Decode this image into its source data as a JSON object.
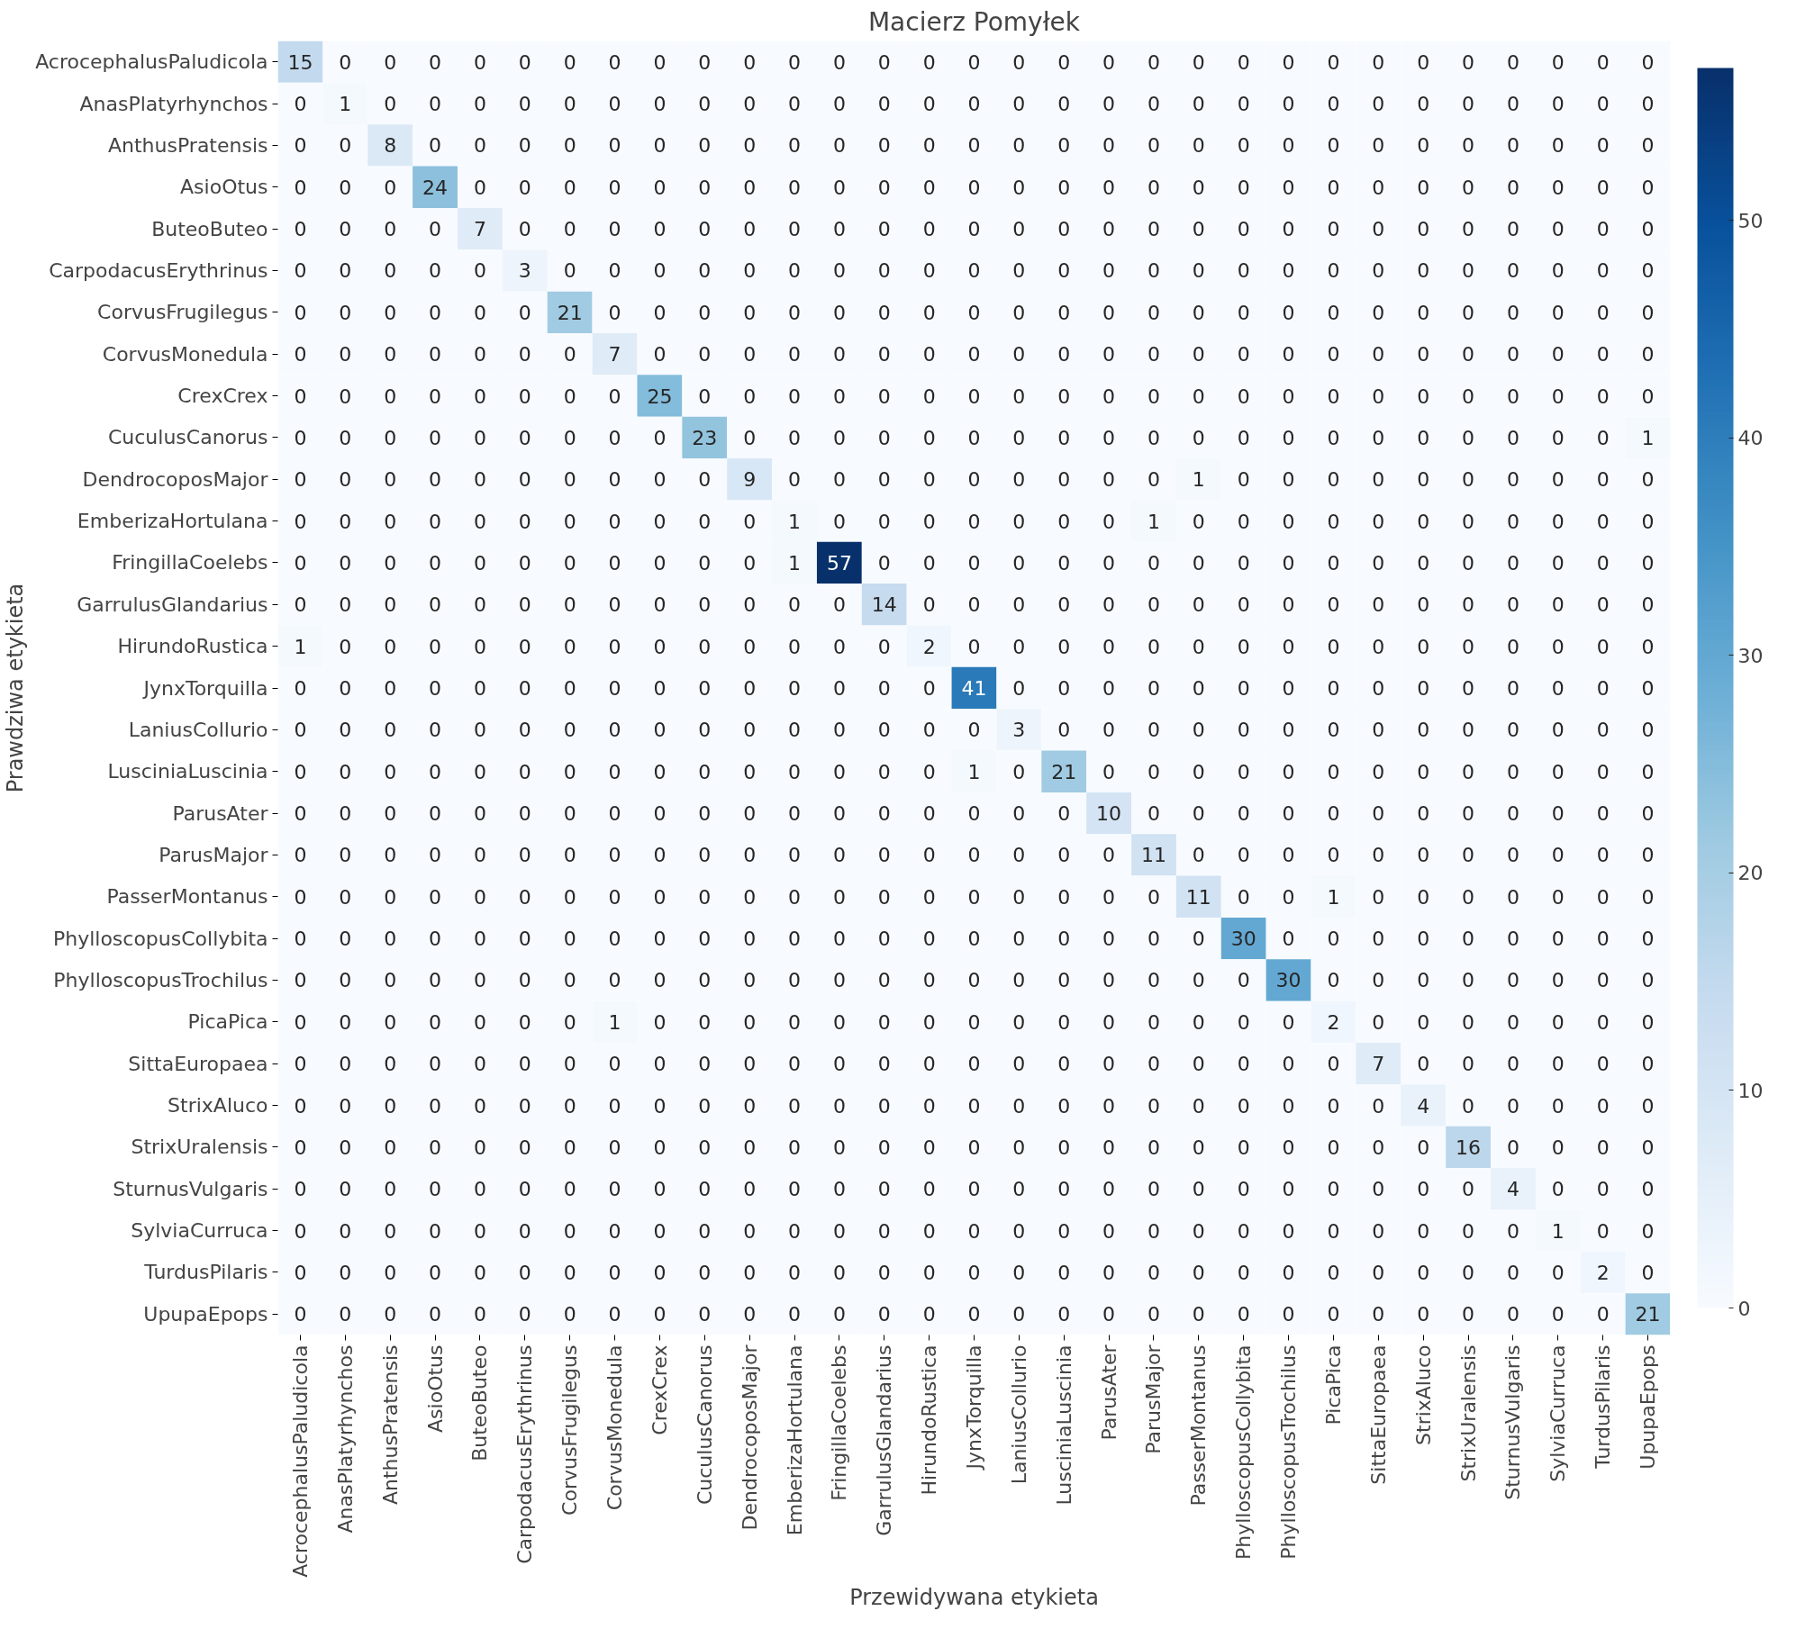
{
  "chart_data": {
    "type": "heatmap",
    "title": "Macierz Pomyłek",
    "xlabel": "Przewidywana etykieta",
    "ylabel": "Prawdziwa etykieta",
    "categories": [
      "AcrocephalusPaludicola",
      "AnasPlatyrhynchos",
      "AnthusPratensis",
      "AsioOtus",
      "ButeoButeo",
      "CarpodacusErythrinus",
      "CorvusFrugilegus",
      "CorvusMonedula",
      "CrexCrex",
      "CuculusCanorus",
      "DendrocoposMajor",
      "EmberizaHortulana",
      "FringillaCoelebs",
      "GarrulusGlandarius",
      "HirundoRustica",
      "JynxTorquilla",
      "LaniusCollurio",
      "LusciniaLuscinia",
      "ParusAter",
      "ParusMajor",
      "PasserMontanus",
      "PhylloscopusCollybita",
      "PhylloscopusTrochilus",
      "PicaPica",
      "SittaEuropaea",
      "StrixAluco",
      "StrixUralensis",
      "SturnusVulgaris",
      "SylviaCurruca",
      "TurdusPilaris",
      "UpupaEpops"
    ],
    "y_categories": [
      "AcrocephalusPaludicola",
      "AnasPlatyrhynchos",
      "AnthusPratensis",
      "AsioOtus",
      "ButeoButeo",
      "CarpodacusErythrinus",
      "CorvusFrugilegus",
      "CorvusMonedula",
      "CrexCrex",
      "CuculusCanorus",
      "DendrocoposMajor",
      "EmberizaHortulana",
      "FringillaCoelebs",
      "GarrulusGlandarius",
      "HirundoRustica",
      "JynxTorquilla",
      "LaniusCollurio",
      "LusciniaLuscinia",
      "ParusAter",
      "ParusMajor",
      "PasserMontanus",
      "PhylloscopusCollybita",
      "PhylloscopusTrochilus",
      "PicaPica",
      "SittaEuropaea",
      "StrixAluco",
      "StrixUralensis",
      "SturnusVulgaris",
      "SylviaCurruca",
      "TurdusPilaris",
      "UpupaEpops"
    ],
    "cells": [
      [
        15,
        0,
        0,
        0,
        0,
        0,
        0,
        0,
        0,
        0,
        0,
        0,
        0,
        0,
        0,
        0,
        0,
        0,
        0,
        0,
        0,
        0,
        0,
        0,
        0,
        0,
        0,
        0,
        0,
        0,
        0
      ],
      [
        0,
        1,
        0,
        0,
        0,
        0,
        0,
        0,
        0,
        0,
        0,
        0,
        0,
        0,
        0,
        0,
        0,
        0,
        0,
        0,
        0,
        0,
        0,
        0,
        0,
        0,
        0,
        0,
        0,
        0,
        0
      ],
      [
        0,
        0,
        8,
        0,
        0,
        0,
        0,
        0,
        0,
        0,
        0,
        0,
        0,
        0,
        0,
        0,
        0,
        0,
        0,
        0,
        0,
        0,
        0,
        0,
        0,
        0,
        0,
        0,
        0,
        0,
        0
      ],
      [
        0,
        0,
        0,
        24,
        0,
        0,
        0,
        0,
        0,
        0,
        0,
        0,
        0,
        0,
        0,
        0,
        0,
        0,
        0,
        0,
        0,
        0,
        0,
        0,
        0,
        0,
        0,
        0,
        0,
        0,
        0
      ],
      [
        0,
        0,
        0,
        0,
        7,
        0,
        0,
        0,
        0,
        0,
        0,
        0,
        0,
        0,
        0,
        0,
        0,
        0,
        0,
        0,
        0,
        0,
        0,
        0,
        0,
        0,
        0,
        0,
        0,
        0,
        0
      ],
      [
        0,
        0,
        0,
        0,
        0,
        3,
        0,
        0,
        0,
        0,
        0,
        0,
        0,
        0,
        0,
        0,
        0,
        0,
        0,
        0,
        0,
        0,
        0,
        0,
        0,
        0,
        0,
        0,
        0,
        0,
        0
      ],
      [
        0,
        0,
        0,
        0,
        0,
        0,
        21,
        0,
        0,
        0,
        0,
        0,
        0,
        0,
        0,
        0,
        0,
        0,
        0,
        0,
        0,
        0,
        0,
        0,
        0,
        0,
        0,
        0,
        0,
        0,
        0
      ],
      [
        0,
        0,
        0,
        0,
        0,
        0,
        0,
        7,
        0,
        0,
        0,
        0,
        0,
        0,
        0,
        0,
        0,
        0,
        0,
        0,
        0,
        0,
        0,
        0,
        0,
        0,
        0,
        0,
        0,
        0,
        0
      ],
      [
        0,
        0,
        0,
        0,
        0,
        0,
        0,
        0,
        25,
        0,
        0,
        0,
        0,
        0,
        0,
        0,
        0,
        0,
        0,
        0,
        0,
        0,
        0,
        0,
        0,
        0,
        0,
        0,
        0,
        0,
        0
      ],
      [
        0,
        0,
        0,
        0,
        0,
        0,
        0,
        0,
        0,
        23,
        0,
        0,
        0,
        0,
        0,
        0,
        0,
        0,
        0,
        0,
        0,
        0,
        0,
        0,
        0,
        0,
        0,
        0,
        0,
        0,
        1
      ],
      [
        0,
        0,
        0,
        0,
        0,
        0,
        0,
        0,
        0,
        0,
        9,
        0,
        0,
        0,
        0,
        0,
        0,
        0,
        0,
        0,
        1,
        0,
        0,
        0,
        0,
        0,
        0,
        0,
        0,
        0,
        0
      ],
      [
        0,
        0,
        0,
        0,
        0,
        0,
        0,
        0,
        0,
        0,
        0,
        1,
        0,
        0,
        0,
        0,
        0,
        0,
        0,
        1,
        0,
        0,
        0,
        0,
        0,
        0,
        0,
        0,
        0,
        0,
        0
      ],
      [
        0,
        0,
        0,
        0,
        0,
        0,
        0,
        0,
        0,
        0,
        0,
        1,
        57,
        0,
        0,
        0,
        0,
        0,
        0,
        0,
        0,
        0,
        0,
        0,
        0,
        0,
        0,
        0,
        0,
        0,
        0
      ],
      [
        0,
        0,
        0,
        0,
        0,
        0,
        0,
        0,
        0,
        0,
        0,
        0,
        0,
        14,
        0,
        0,
        0,
        0,
        0,
        0,
        0,
        0,
        0,
        0,
        0,
        0,
        0,
        0,
        0,
        0,
        0
      ],
      [
        1,
        0,
        0,
        0,
        0,
        0,
        0,
        0,
        0,
        0,
        0,
        0,
        0,
        0,
        2,
        0,
        0,
        0,
        0,
        0,
        0,
        0,
        0,
        0,
        0,
        0,
        0,
        0,
        0,
        0,
        0
      ],
      [
        0,
        0,
        0,
        0,
        0,
        0,
        0,
        0,
        0,
        0,
        0,
        0,
        0,
        0,
        0,
        41,
        0,
        0,
        0,
        0,
        0,
        0,
        0,
        0,
        0,
        0,
        0,
        0,
        0,
        0,
        0
      ],
      [
        0,
        0,
        0,
        0,
        0,
        0,
        0,
        0,
        0,
        0,
        0,
        0,
        0,
        0,
        0,
        0,
        3,
        0,
        0,
        0,
        0,
        0,
        0,
        0,
        0,
        0,
        0,
        0,
        0,
        0,
        0
      ],
      [
        0,
        0,
        0,
        0,
        0,
        0,
        0,
        0,
        0,
        0,
        0,
        0,
        0,
        0,
        0,
        1,
        0,
        21,
        0,
        0,
        0,
        0,
        0,
        0,
        0,
        0,
        0,
        0,
        0,
        0,
        0
      ],
      [
        0,
        0,
        0,
        0,
        0,
        0,
        0,
        0,
        0,
        0,
        0,
        0,
        0,
        0,
        0,
        0,
        0,
        0,
        10,
        0,
        0,
        0,
        0,
        0,
        0,
        0,
        0,
        0,
        0,
        0,
        0
      ],
      [
        0,
        0,
        0,
        0,
        0,
        0,
        0,
        0,
        0,
        0,
        0,
        0,
        0,
        0,
        0,
        0,
        0,
        0,
        0,
        11,
        0,
        0,
        0,
        0,
        0,
        0,
        0,
        0,
        0,
        0,
        0
      ],
      [
        0,
        0,
        0,
        0,
        0,
        0,
        0,
        0,
        0,
        0,
        0,
        0,
        0,
        0,
        0,
        0,
        0,
        0,
        0,
        0,
        11,
        0,
        0,
        1,
        0,
        0,
        0,
        0,
        0,
        0,
        0
      ],
      [
        0,
        0,
        0,
        0,
        0,
        0,
        0,
        0,
        0,
        0,
        0,
        0,
        0,
        0,
        0,
        0,
        0,
        0,
        0,
        0,
        0,
        30,
        0,
        0,
        0,
        0,
        0,
        0,
        0,
        0,
        0
      ],
      [
        0,
        0,
        0,
        0,
        0,
        0,
        0,
        0,
        0,
        0,
        0,
        0,
        0,
        0,
        0,
        0,
        0,
        0,
        0,
        0,
        0,
        0,
        30,
        0,
        0,
        0,
        0,
        0,
        0,
        0,
        0
      ],
      [
        0,
        0,
        0,
        0,
        0,
        0,
        0,
        1,
        0,
        0,
        0,
        0,
        0,
        0,
        0,
        0,
        0,
        0,
        0,
        0,
        0,
        0,
        0,
        2,
        0,
        0,
        0,
        0,
        0,
        0,
        0
      ],
      [
        0,
        0,
        0,
        0,
        0,
        0,
        0,
        0,
        0,
        0,
        0,
        0,
        0,
        0,
        0,
        0,
        0,
        0,
        0,
        0,
        0,
        0,
        0,
        0,
        7,
        0,
        0,
        0,
        0,
        0,
        0
      ],
      [
        0,
        0,
        0,
        0,
        0,
        0,
        0,
        0,
        0,
        0,
        0,
        0,
        0,
        0,
        0,
        0,
        0,
        0,
        0,
        0,
        0,
        0,
        0,
        0,
        0,
        4,
        0,
        0,
        0,
        0,
        0
      ],
      [
        0,
        0,
        0,
        0,
        0,
        0,
        0,
        0,
        0,
        0,
        0,
        0,
        0,
        0,
        0,
        0,
        0,
        0,
        0,
        0,
        0,
        0,
        0,
        0,
        0,
        0,
        16,
        0,
        0,
        0,
        0
      ],
      [
        0,
        0,
        0,
        0,
        0,
        0,
        0,
        0,
        0,
        0,
        0,
        0,
        0,
        0,
        0,
        0,
        0,
        0,
        0,
        0,
        0,
        0,
        0,
        0,
        0,
        0,
        0,
        4,
        0,
        0,
        0
      ],
      [
        0,
        0,
        0,
        0,
        0,
        0,
        0,
        0,
        0,
        0,
        0,
        0,
        0,
        0,
        0,
        0,
        0,
        0,
        0,
        0,
        0,
        0,
        0,
        0,
        0,
        0,
        0,
        0,
        1,
        0,
        0
      ],
      [
        0,
        0,
        0,
        0,
        0,
        0,
        0,
        0,
        0,
        0,
        0,
        0,
        0,
        0,
        0,
        0,
        0,
        0,
        0,
        0,
        0,
        0,
        0,
        0,
        0,
        0,
        0,
        0,
        0,
        2,
        0
      ],
      [
        0,
        0,
        0,
        0,
        0,
        0,
        0,
        0,
        0,
        0,
        0,
        0,
        0,
        0,
        0,
        0,
        0,
        0,
        0,
        0,
        0,
        0,
        0,
        0,
        0,
        0,
        0,
        0,
        0,
        0,
        21
      ]
    ],
    "clim": [
      0,
      57
    ],
    "cticks": [
      0,
      10,
      20,
      30,
      40,
      50
    ],
    "data_labels": true
  }
}
